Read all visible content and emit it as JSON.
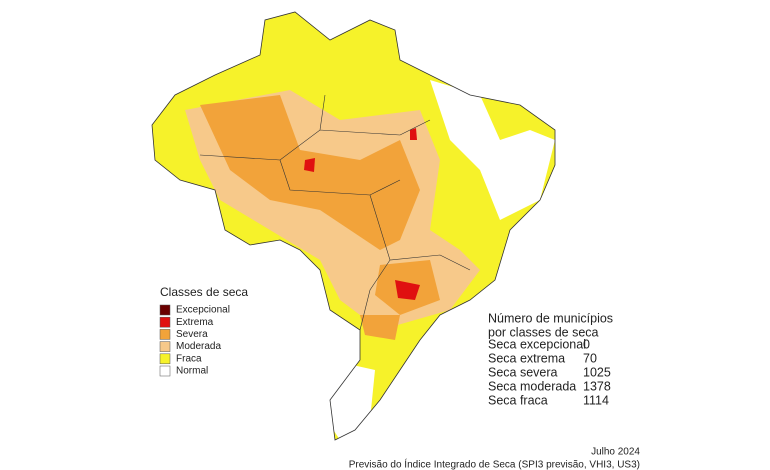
{
  "legend": {
    "title": "Classes de seca",
    "items": [
      {
        "label": "Excepcional",
        "color": "#6b0000"
      },
      {
        "label": "Extrema",
        "color": "#e01010"
      },
      {
        "label": "Severa",
        "color": "#f2a33a"
      },
      {
        "label": "Moderada",
        "color": "#f7c98a"
      },
      {
        "label": "Fraca",
        "color": "#f6f22a"
      },
      {
        "label": "Normal",
        "color": "#ffffff"
      }
    ]
  },
  "stats": {
    "title_lines": [
      "Número de municípios",
      "por classes de seca"
    ],
    "rows": [
      [
        "Seca excepcional",
        "0"
      ],
      [
        "Seca extrema",
        "70"
      ],
      [
        "Seca severa",
        "1025"
      ],
      [
        "Seca moderada",
        "1378"
      ],
      [
        "Seca fraca",
        "1114"
      ]
    ]
  },
  "footer": {
    "date": "Julho 2024",
    "source": "Previsão do Índice Integrado de Seca (SPI3 previsão, VHI3, US3)"
  }
}
